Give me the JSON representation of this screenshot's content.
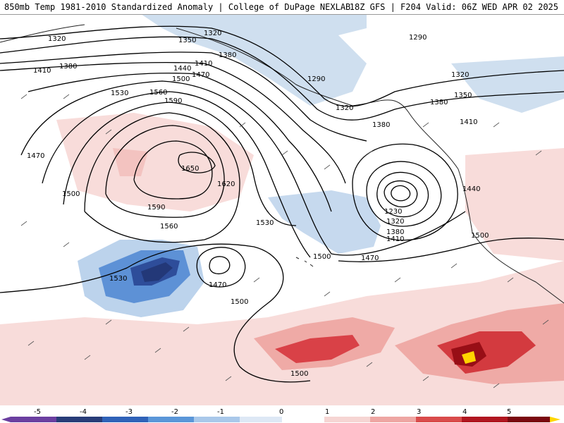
{
  "header": {
    "left_title": "850mb Temp 1981-2010 Standardized Anomaly | College of DuPage NEXLAB",
    "right_title": "18Z GFS | F204 Valid: 06Z WED APR 02 2025"
  },
  "contour_labels": [
    "1320",
    "1350",
    "1380",
    "1410",
    "1440",
    "1470",
    "1500",
    "1530",
    "1560",
    "1590",
    "1620",
    "1650",
    "1290",
    "1230"
  ],
  "colorbar": {
    "ticks": [
      "-5",
      "-4",
      "-3",
      "-2",
      "-1",
      "0",
      "1",
      "2",
      "3",
      "4",
      "5"
    ],
    "colors": [
      "#6b3fa0",
      "#283c78",
      "#2f62b8",
      "#5a96d8",
      "#a9c8ea",
      "#dde8f5",
      "#ffffff",
      "#f6d5d3",
      "#eea6a3",
      "#d94b4b",
      "#b01620",
      "#7a0810",
      "#ffd700"
    ]
  },
  "colors": {
    "cold_light": "#c9dbef",
    "cold_mid": "#8fb6e2",
    "cold_strong": "#3c75c9",
    "cold_extreme": "#22366f",
    "warm_light": "#f7d8d6",
    "warm_mid": "#eda3a0",
    "warm_strong": "#d33a3f",
    "warm_extreme": "#980e16",
    "warm_max": "#ffd400"
  }
}
